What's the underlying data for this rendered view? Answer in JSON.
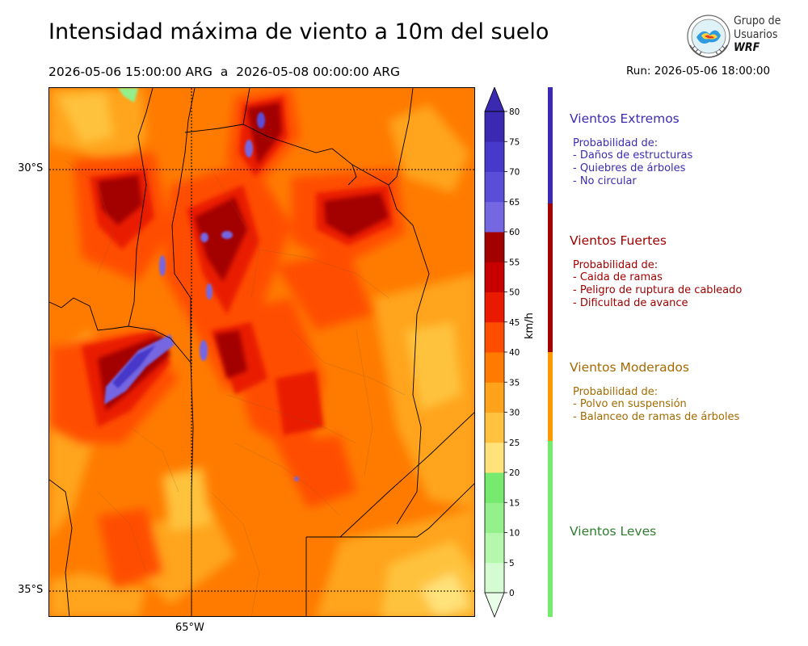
{
  "header": {
    "title": "Intensidad máxima de viento a 10m del suelo",
    "period": "2026-05-06 15:00:00 ARG  a  2026-05-08 00:00:00 ARG",
    "run": "Run: 2026-05-06 18:00:00"
  },
  "logo": {
    "line1": "Grupo de",
    "line2": "Usuarios",
    "line3": "WRF"
  },
  "map": {
    "lat_labels": [
      "30°S",
      "35°S"
    ],
    "lon_labels": [
      "65°W"
    ],
    "gridline_lat_values": [
      -30,
      -35
    ],
    "gridline_lon_values": [
      -65
    ]
  },
  "colorbar": {
    "unit": "km/h",
    "ticks": [
      "0",
      "5",
      "10",
      "15",
      "20",
      "25",
      "30",
      "35",
      "40",
      "45",
      "50",
      "55",
      "60",
      "65",
      "70",
      "75",
      "80"
    ],
    "colors": [
      "#eafde8",
      "#d5fbd2",
      "#b6f7ae",
      "#93f08b",
      "#76ea6e",
      "#ffe27a",
      "#ffc23e",
      "#ffa41a",
      "#ff7b00",
      "#ff4d00",
      "#e91a00",
      "#c80000",
      "#a30000",
      "#7566e2",
      "#5a4dd7",
      "#4739c9",
      "#3b2ab1"
    ],
    "extend": "both"
  },
  "categories": [
    {
      "name": "Vientos Extremos",
      "color": "#3b2cb2",
      "prob_label": "Probabilidad de:",
      "items": [
        "- Daños de estructuras",
        "- Quiebres de árboles",
        "- No circular"
      ]
    },
    {
      "name": "Vientos Fuertes",
      "color": "#a00000",
      "prob_label": "Probabilidad de:",
      "items": [
        "- Caida de ramas",
        "- Peligro de ruptura de cableado",
        "- Dificultad de avance"
      ]
    },
    {
      "name": "Vientos Moderados",
      "color": "#a36a00",
      "prob_label": "Probabilidad de:",
      "items": [
        "- Polvo en suspensión",
        "- Balanceo de ramas de árboles"
      ]
    },
    {
      "name": "Vientos Leves",
      "color": "#2f7d2f",
      "prob_label": "",
      "items": []
    }
  ]
}
